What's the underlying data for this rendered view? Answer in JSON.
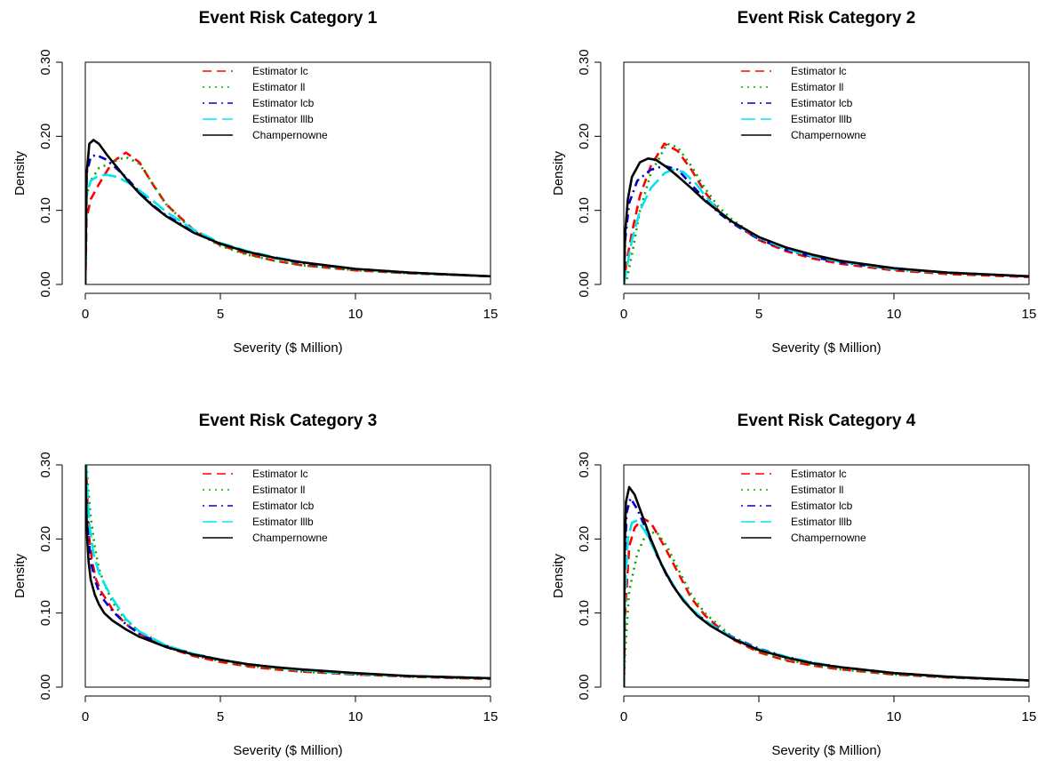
{
  "chart_data": [
    {
      "type": "line",
      "title": "Event Risk Category 1",
      "xlabel": "Severity ($ Million)",
      "ylabel": "Density",
      "xlim": [
        0,
        15
      ],
      "ylim": [
        0,
        0.3
      ],
      "xticks": [
        "0",
        "5",
        "10",
        "15"
      ],
      "yticks": [
        "0.00",
        "0.10",
        "0.20",
        "0.30"
      ],
      "legend_position": "top-center",
      "series": [
        {
          "name": "Estimator lc",
          "color": "#ff0000",
          "dash": "dashed",
          "x": [
            0,
            0.05,
            0.2,
            0.5,
            1,
            1.5,
            2,
            2.5,
            3,
            4,
            5,
            6,
            7,
            8,
            10,
            12,
            15
          ],
          "y": [
            0,
            0.09,
            0.115,
            0.135,
            0.165,
            0.178,
            0.165,
            0.135,
            0.108,
            0.074,
            0.053,
            0.041,
            0.032,
            0.026,
            0.019,
            0.015,
            0.011
          ]
        },
        {
          "name": "Estimator ll",
          "color": "#00aa00",
          "dash": "dotted",
          "x": [
            0,
            0.05,
            0.2,
            0.5,
            1,
            1.5,
            2,
            2.5,
            3,
            4,
            5,
            6,
            7,
            8,
            10,
            12,
            15
          ],
          "y": [
            0,
            0.12,
            0.14,
            0.157,
            0.165,
            0.172,
            0.163,
            0.136,
            0.108,
            0.072,
            0.052,
            0.04,
            0.032,
            0.026,
            0.019,
            0.015,
            0.011
          ]
        },
        {
          "name": "Estimator lcb",
          "color": "#0000cc",
          "dash": "dotdash",
          "x": [
            0,
            0.05,
            0.2,
            0.4,
            0.8,
            1.2,
            1.5,
            2,
            2.5,
            3,
            4,
            5,
            6,
            7,
            8,
            10,
            12,
            15
          ],
          "y": [
            0,
            0.15,
            0.172,
            0.175,
            0.168,
            0.155,
            0.145,
            0.125,
            0.107,
            0.093,
            0.072,
            0.055,
            0.044,
            0.036,
            0.029,
            0.021,
            0.016,
            0.011
          ]
        },
        {
          "name": "Estimator lllb",
          "color": "#00e5ee",
          "dash": "longdash",
          "x": [
            0,
            0.05,
            0.2,
            0.5,
            0.8,
            1.2,
            1.6,
            2,
            2.5,
            3,
            4,
            5,
            6,
            7,
            8,
            10,
            12,
            15
          ],
          "y": [
            0,
            0.12,
            0.14,
            0.147,
            0.148,
            0.145,
            0.137,
            0.127,
            0.113,
            0.098,
            0.074,
            0.056,
            0.045,
            0.037,
            0.03,
            0.021,
            0.016,
            0.011
          ]
        },
        {
          "name": "Champernowne",
          "color": "#000000",
          "dash": "solid",
          "x": [
            0,
            0.05,
            0.15,
            0.3,
            0.5,
            0.8,
            1.2,
            1.6,
            2,
            2.5,
            3,
            4,
            5,
            6,
            7,
            8,
            10,
            12,
            15
          ],
          "y": [
            0,
            0.15,
            0.19,
            0.195,
            0.19,
            0.175,
            0.157,
            0.139,
            0.123,
            0.106,
            0.092,
            0.07,
            0.055,
            0.044,
            0.036,
            0.03,
            0.021,
            0.016,
            0.011
          ]
        }
      ]
    },
    {
      "type": "line",
      "title": "Event Risk Category 2",
      "xlabel": "Severity ($ Million)",
      "ylabel": "Density",
      "xlim": [
        0,
        15
      ],
      "ylim": [
        0,
        0.3
      ],
      "xticks": [
        "0",
        "5",
        "10",
        "15"
      ],
      "yticks": [
        "0.00",
        "0.10",
        "0.20",
        "0.30"
      ],
      "legend_position": "top-center",
      "series": [
        {
          "name": "Estimator lc",
          "color": "#ff0000",
          "dash": "dashed",
          "x": [
            0,
            0.1,
            0.3,
            0.6,
            1,
            1.5,
            2,
            2.5,
            3,
            3.5,
            4,
            5,
            6,
            7,
            8,
            10,
            12,
            15
          ],
          "y": [
            0,
            0.03,
            0.07,
            0.12,
            0.16,
            0.19,
            0.18,
            0.155,
            0.125,
            0.1,
            0.085,
            0.06,
            0.045,
            0.035,
            0.028,
            0.019,
            0.014,
            0.01
          ]
        },
        {
          "name": "Estimator ll",
          "color": "#00aa00",
          "dash": "dotted",
          "x": [
            0,
            0.1,
            0.3,
            0.6,
            1,
            1.6,
            2,
            2.5,
            3,
            3.5,
            4,
            5,
            6,
            7,
            8,
            10,
            12,
            15
          ],
          "y": [
            0,
            0.005,
            0.04,
            0.1,
            0.15,
            0.19,
            0.185,
            0.16,
            0.13,
            0.105,
            0.088,
            0.062,
            0.047,
            0.037,
            0.03,
            0.02,
            0.015,
            0.011
          ]
        },
        {
          "name": "Estimator lcb",
          "color": "#0000cc",
          "dash": "dotdash",
          "x": [
            0,
            0.05,
            0.2,
            0.5,
            1,
            1.5,
            2,
            2.5,
            3,
            3.5,
            4,
            5,
            6,
            7,
            8,
            10,
            12,
            15
          ],
          "y": [
            0,
            0.06,
            0.11,
            0.14,
            0.155,
            0.16,
            0.155,
            0.135,
            0.115,
            0.097,
            0.083,
            0.061,
            0.047,
            0.037,
            0.03,
            0.021,
            0.016,
            0.011
          ]
        },
        {
          "name": "Estimator lllb",
          "color": "#00e5ee",
          "dash": "longdash",
          "x": [
            0,
            0.1,
            0.3,
            0.6,
            1,
            1.5,
            1.8,
            2.2,
            2.7,
            3,
            3.5,
            4,
            5,
            6,
            7,
            8,
            10,
            12,
            15
          ],
          "y": [
            0,
            0.02,
            0.06,
            0.1,
            0.13,
            0.15,
            0.155,
            0.152,
            0.135,
            0.12,
            0.1,
            0.085,
            0.063,
            0.048,
            0.038,
            0.031,
            0.021,
            0.016,
            0.011
          ]
        },
        {
          "name": "Champernowne",
          "color": "#000000",
          "dash": "solid",
          "x": [
            0,
            0.05,
            0.15,
            0.3,
            0.6,
            0.9,
            1.2,
            1.6,
            2,
            2.5,
            3,
            4,
            5,
            6,
            7,
            8,
            10,
            12,
            15
          ],
          "y": [
            0,
            0.07,
            0.115,
            0.145,
            0.165,
            0.17,
            0.168,
            0.158,
            0.146,
            0.13,
            0.113,
            0.085,
            0.064,
            0.05,
            0.04,
            0.032,
            0.022,
            0.016,
            0.011
          ]
        }
      ]
    },
    {
      "type": "line",
      "title": "Event Risk Category 3",
      "xlabel": "Severity ($ Million)",
      "ylabel": "Density",
      "xlim": [
        0,
        15
      ],
      "ylim": [
        0,
        0.3
      ],
      "xticks": [
        "0",
        "5",
        "10",
        "15"
      ],
      "yticks": [
        "0.00",
        "0.10",
        "0.20",
        "0.30"
      ],
      "legend_position": "top-center",
      "series": [
        {
          "name": "Estimator lc",
          "color": "#ff0000",
          "dash": "dashed",
          "x": [
            0.03,
            0.08,
            0.15,
            0.25,
            0.4,
            0.6,
            0.8,
            1,
            1.5,
            2,
            3,
            4,
            5,
            6,
            7,
            8,
            10,
            12,
            15
          ],
          "y": [
            0.3,
            0.25,
            0.2,
            0.17,
            0.145,
            0.128,
            0.117,
            0.105,
            0.085,
            0.072,
            0.054,
            0.042,
            0.034,
            0.028,
            0.024,
            0.021,
            0.017,
            0.014,
            0.011
          ]
        },
        {
          "name": "Estimator ll",
          "color": "#00aa00",
          "dash": "dotted",
          "x": [
            0.05,
            0.1,
            0.2,
            0.35,
            0.5,
            0.7,
            1,
            1.5,
            2,
            3,
            4,
            5,
            6,
            7,
            8,
            10,
            12,
            15
          ],
          "y": [
            0.3,
            0.27,
            0.23,
            0.19,
            0.16,
            0.14,
            0.115,
            0.09,
            0.075,
            0.056,
            0.043,
            0.035,
            0.029,
            0.025,
            0.021,
            0.017,
            0.014,
            0.011
          ]
        },
        {
          "name": "Estimator lcb",
          "color": "#0000cc",
          "dash": "dotdash",
          "x": [
            0.02,
            0.05,
            0.1,
            0.2,
            0.35,
            0.5,
            0.7,
            1,
            1.5,
            2,
            3,
            4,
            5,
            6,
            7,
            8,
            10,
            12,
            15
          ],
          "y": [
            0.3,
            0.26,
            0.21,
            0.17,
            0.145,
            0.13,
            0.117,
            0.103,
            0.085,
            0.072,
            0.055,
            0.045,
            0.037,
            0.031,
            0.027,
            0.023,
            0.018,
            0.015,
            0.012
          ]
        },
        {
          "name": "Estimator lllb",
          "color": "#00e5ee",
          "dash": "longdash",
          "x": [
            0.03,
            0.08,
            0.15,
            0.3,
            0.5,
            0.7,
            1,
            1.5,
            2,
            3,
            4,
            5,
            6,
            7,
            8,
            10,
            12,
            15
          ],
          "y": [
            0.3,
            0.26,
            0.22,
            0.18,
            0.155,
            0.14,
            0.12,
            0.092,
            0.075,
            0.056,
            0.045,
            0.037,
            0.031,
            0.027,
            0.023,
            0.018,
            0.015,
            0.012
          ]
        },
        {
          "name": "Champernowne",
          "color": "#000000",
          "dash": "solid",
          "x": [
            0.01,
            0.03,
            0.07,
            0.12,
            0.2,
            0.35,
            0.5,
            0.7,
            1,
            1.5,
            2,
            3,
            4,
            5,
            6,
            7,
            8,
            10,
            12,
            15
          ],
          "y": [
            0.3,
            0.25,
            0.2,
            0.17,
            0.145,
            0.125,
            0.112,
            0.1,
            0.09,
            0.078,
            0.068,
            0.054,
            0.044,
            0.037,
            0.031,
            0.027,
            0.024,
            0.019,
            0.015,
            0.012
          ]
        }
      ]
    },
    {
      "type": "line",
      "title": "Event Risk Category 4",
      "xlabel": "Severity ($ Million)",
      "ylabel": "Density",
      "xlim": [
        0,
        15
      ],
      "ylim": [
        0,
        0.3
      ],
      "xticks": [
        "0",
        "5",
        "10",
        "15"
      ],
      "yticks": [
        "0.00",
        "0.10",
        "0.20",
        "0.30"
      ],
      "legend_position": "top-center",
      "series": [
        {
          "name": "Estimator lc",
          "color": "#ff0000",
          "dash": "dashed",
          "x": [
            0,
            0.05,
            0.2,
            0.4,
            0.7,
            1,
            1.5,
            2,
            2.5,
            3,
            4,
            5,
            6,
            7,
            8,
            10,
            12,
            15
          ],
          "y": [
            0,
            0.1,
            0.19,
            0.215,
            0.228,
            0.222,
            0.19,
            0.155,
            0.12,
            0.097,
            0.065,
            0.047,
            0.036,
            0.029,
            0.024,
            0.017,
            0.013,
            0.009
          ]
        },
        {
          "name": "Estimator ll",
          "color": "#00aa00",
          "dash": "dotted",
          "x": [
            0,
            0.05,
            0.2,
            0.5,
            0.8,
            1.2,
            1.6,
            2,
            2.5,
            3,
            4,
            5,
            6,
            7,
            8,
            10,
            12,
            15
          ],
          "y": [
            0,
            0.05,
            0.13,
            0.18,
            0.205,
            0.21,
            0.19,
            0.16,
            0.125,
            0.1,
            0.068,
            0.048,
            0.037,
            0.03,
            0.024,
            0.017,
            0.013,
            0.009
          ]
        },
        {
          "name": "Estimator lcb",
          "color": "#0000cc",
          "dash": "dotdash",
          "x": [
            0,
            0.03,
            0.1,
            0.25,
            0.5,
            0.8,
            1.2,
            1.6,
            2,
            2.5,
            3,
            4,
            5,
            6,
            7,
            8,
            10,
            12,
            15
          ],
          "y": [
            0,
            0.15,
            0.235,
            0.255,
            0.24,
            0.215,
            0.18,
            0.15,
            0.127,
            0.105,
            0.09,
            0.068,
            0.052,
            0.041,
            0.033,
            0.027,
            0.019,
            0.014,
            0.009
          ]
        },
        {
          "name": "Estimator lllb",
          "color": "#00e5ee",
          "dash": "longdash",
          "x": [
            0,
            0.05,
            0.15,
            0.3,
            0.5,
            0.8,
            1.2,
            1.6,
            2,
            2.5,
            3,
            4,
            5,
            6,
            7,
            8,
            10,
            12,
            15
          ],
          "y": [
            0,
            0.13,
            0.2,
            0.222,
            0.225,
            0.21,
            0.18,
            0.152,
            0.128,
            0.106,
            0.09,
            0.067,
            0.051,
            0.041,
            0.033,
            0.027,
            0.019,
            0.014,
            0.009
          ]
        },
        {
          "name": "Champernowne",
          "color": "#000000",
          "dash": "solid",
          "x": [
            0,
            0.03,
            0.08,
            0.2,
            0.4,
            0.7,
            1,
            1.4,
            1.8,
            2.2,
            2.7,
            3.2,
            4,
            5,
            6,
            7,
            8,
            10,
            12,
            15
          ],
          "y": [
            0,
            0.18,
            0.25,
            0.27,
            0.26,
            0.23,
            0.2,
            0.165,
            0.138,
            0.117,
            0.097,
            0.083,
            0.066,
            0.05,
            0.04,
            0.032,
            0.027,
            0.019,
            0.014,
            0.009
          ]
        }
      ]
    }
  ]
}
